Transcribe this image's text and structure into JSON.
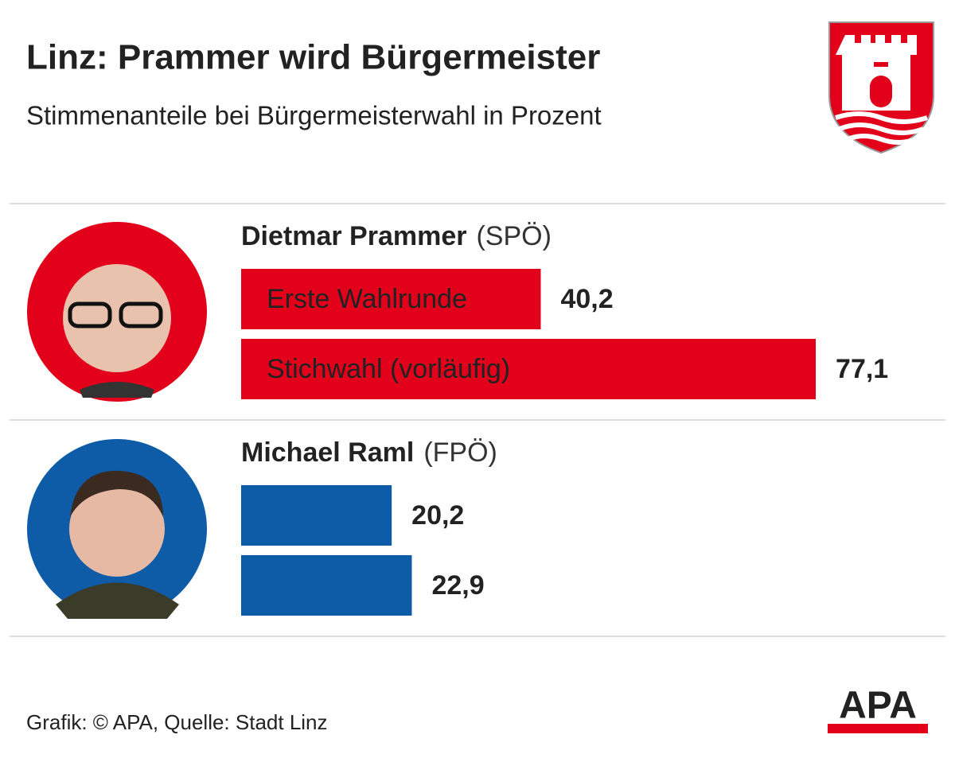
{
  "chart_data": {
    "type": "grouped-hbar",
    "title": "Linz: Prammer wird Bürgermeister",
    "subtitle": "Stimmenanteile bei Bürgermeisterwahl in Prozent",
    "categories": [
      "Erste Wahlrunde",
      "Stichwahl (vorläufig)"
    ],
    "groups": [
      {
        "name": "Dietmar Prammer",
        "party": "(SPÖ)",
        "color": "#e2001a",
        "values": [
          40.2,
          77.1
        ],
        "value_labels": [
          "40,2",
          "77,1"
        ]
      },
      {
        "name": "Michael Raml",
        "party": "(FPÖ)",
        "color": "#0e5ca8",
        "values": [
          20.2,
          22.9
        ],
        "value_labels": [
          "20,2",
          "22,9"
        ]
      }
    ],
    "source": "Grafik: © APA, Quelle: Stadt Linz",
    "logo": "APA"
  }
}
